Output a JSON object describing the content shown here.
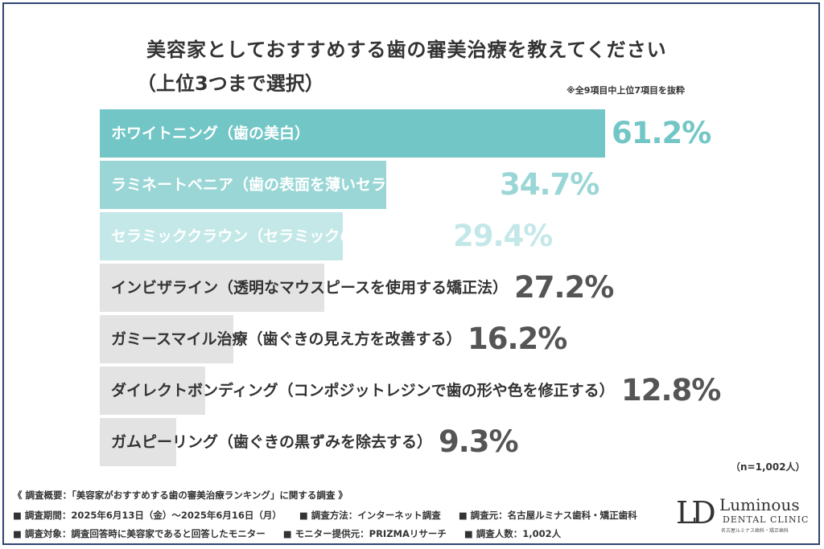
{
  "chart_data": {
    "type": "bar",
    "orientation": "horizontal",
    "title": "美容家としておすすめする歯の審美治療を教えてください",
    "subtitle": "（上位3つまで選択）",
    "note": "※全9項目中上位7項目を抜粋",
    "sample": "（n=1,002人）",
    "unit": "%",
    "categories": [
      "ホワイトニング（歯の美白）",
      "ラミネートベニア（歯の表面を薄いセラミックで覆う）",
      "セラミッククラウン（セラミックの歯の被せ物）",
      "インビザライン（透明なマウスピースを使用する矯正法）",
      "ガミースマイル治療（歯ぐきの見え方を改善する）",
      "ダイレクトボンディング（コンポジットレジンで歯の形や色を修正する）",
      "ガムピーリング（歯ぐきの黒ずみを除去する）"
    ],
    "values": [
      61.2,
      34.7,
      29.4,
      27.2,
      16.2,
      12.8,
      9.3
    ],
    "value_labels": [
      "61.2%",
      "34.7%",
      "29.4%",
      "27.2%",
      "16.2%",
      "12.8%",
      "9.3%"
    ],
    "bar_colors": [
      "#73c6c6",
      "#9ad6d6",
      "#c4e8e8",
      "#e3e3e3",
      "#e3e3e3",
      "#e3e3e3",
      "#e3e3e3"
    ],
    "label_colors": [
      "#ffffff",
      "#ffffff",
      "#ffffff",
      "#333333",
      "#333333",
      "#333333",
      "#333333"
    ],
    "value_colors": [
      "#73c6c6",
      "#9ad6d6",
      "#c4e8e8",
      "#555555",
      "#555555",
      "#555555",
      "#555555"
    ],
    "xlim": [
      0,
      100
    ],
    "grid": false,
    "legend": "none"
  },
  "footer": {
    "summary": "《 調査概要：「美容家がおすすめする歯の審美治療ランキング」に関する調査 》",
    "line1": [
      "■ 調査期間：2025年6月13日（金）〜2025年6月16日（月）",
      "■ 調査方法：インターネット調査",
      "■ 調査元：名古屋ルミナス歯科・矯正歯科"
    ],
    "line2": [
      "■ 調査対象：調査回答時に美容家であると回答したモニター",
      "■ モニター提供元：PRIZMAリサーチ",
      "■ 調査人数：1,002人"
    ]
  },
  "logo": {
    "mark": "LD",
    "name": "Luminous",
    "sub": "DENTAL CLINIC",
    "tagline": "名古屋ルミナス歯科・矯正歯科"
  },
  "colors": {
    "frame": "#2f4470",
    "text": "#333333"
  }
}
